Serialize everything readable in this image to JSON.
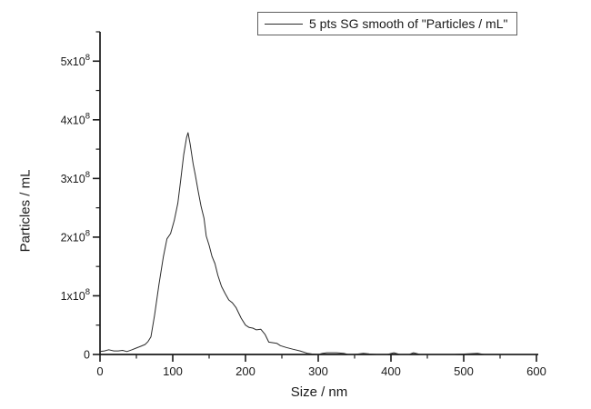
{
  "chart_data": {
    "type": "line",
    "title": "",
    "xlabel": "Size / nm",
    "ylabel": "Particles / mL",
    "xlim": [
      0,
      600
    ],
    "ylim": [
      0,
      550000000.0
    ],
    "grid": false,
    "background_color": "#ffffff",
    "axis_color": "#1a1a1a",
    "x_major_ticks": [
      0,
      100,
      200,
      300,
      400,
      500,
      600
    ],
    "x_major_tick_labels": [
      "0",
      "100",
      "200",
      "300",
      "400",
      "500",
      "600"
    ],
    "x_minor_step": 50,
    "y_major_ticks": [
      0,
      100000000.0,
      200000000.0,
      300000000.0,
      400000000.0,
      500000000.0
    ],
    "y_major_tick_labels": [
      "0",
      "1x10^8",
      "2x10^8",
      "3x10^8",
      "4x10^8",
      "5x10^8"
    ],
    "y_minor_step": 50000000.0,
    "legend": {
      "position": "top-right",
      "border": true,
      "entries": [
        "5 pts SG smooth of \"Particles / mL\""
      ]
    },
    "series": [
      {
        "name": "5 pts SG smooth of \"Particles / mL\"",
        "color": "#2a2a2a",
        "line_width": 1,
        "points": [
          [
            0,
            5000000.0
          ],
          [
            6,
            6000000.0
          ],
          [
            12,
            8000000.0
          ],
          [
            19,
            6000000.0
          ],
          [
            25,
            6000000.0
          ],
          [
            31,
            7000000.0
          ],
          [
            37,
            5000000.0
          ],
          [
            44,
            8000000.0
          ],
          [
            50,
            11000000.0
          ],
          [
            56,
            14000000.0
          ],
          [
            62,
            17000000.0
          ],
          [
            66,
            22000000.0
          ],
          [
            70,
            30000000.0
          ],
          [
            75,
            67000000.0
          ],
          [
            81,
            119000000.0
          ],
          [
            87,
            166000000.0
          ],
          [
            92,
            197000000.0
          ],
          [
            97,
            206000000.0
          ],
          [
            102,
            228000000.0
          ],
          [
            107,
            258000000.0
          ],
          [
            111,
            298000000.0
          ],
          [
            115,
            340000000.0
          ],
          [
            119,
            370000000.0
          ],
          [
            121,
            378000000.0
          ],
          [
            124,
            358000000.0
          ],
          [
            128,
            325000000.0
          ],
          [
            131,
            306000000.0
          ],
          [
            135,
            278000000.0
          ],
          [
            139,
            252000000.0
          ],
          [
            143,
            232000000.0
          ],
          [
            146,
            202000000.0
          ],
          [
            150,
            186000000.0
          ],
          [
            154,
            167000000.0
          ],
          [
            158,
            155000000.0
          ],
          [
            162,
            135000000.0
          ],
          [
            167,
            116000000.0
          ],
          [
            172,
            104000000.0
          ],
          [
            177,
            93000000.0
          ],
          [
            182,
            88000000.0
          ],
          [
            187,
            80000000.0
          ],
          [
            194,
            62000000.0
          ],
          [
            200,
            50000000.0
          ],
          [
            205,
            46000000.0
          ],
          [
            210,
            45000000.0
          ],
          [
            215,
            42000000.0
          ],
          [
            221,
            43000000.0
          ],
          [
            227,
            34000000.0
          ],
          [
            232,
            21000000.0
          ],
          [
            238,
            20000000.0
          ],
          [
            243,
            19000000.0
          ],
          [
            248,
            15000000.0
          ],
          [
            256,
            12000000.0
          ],
          [
            265,
            9000000.0
          ],
          [
            275,
            6000000.0
          ],
          [
            285,
            2000000.0
          ],
          [
            291,
            1000000.0
          ],
          [
            300,
            0
          ],
          [
            306,
            2000000.0
          ],
          [
            312,
            3000000.0
          ],
          [
            325,
            3000000.0
          ],
          [
            335,
            2000000.0
          ],
          [
            341,
            0
          ],
          [
            350,
            0
          ],
          [
            362,
            2000000.0
          ],
          [
            370,
            1000000.0
          ],
          [
            380,
            0
          ],
          [
            395,
            0
          ],
          [
            404,
            3000000.0
          ],
          [
            412,
            0
          ],
          [
            425,
            0
          ],
          [
            431,
            3000000.0
          ],
          [
            440,
            0
          ],
          [
            460,
            0
          ],
          [
            487,
            0
          ],
          [
            519,
            2000000.0
          ],
          [
            528,
            0
          ],
          [
            560,
            0
          ],
          [
            600,
            0
          ]
        ]
      }
    ]
  }
}
